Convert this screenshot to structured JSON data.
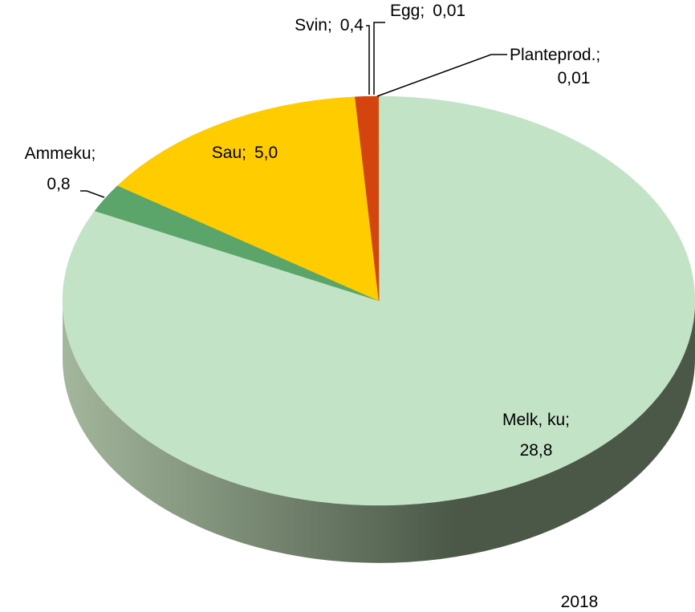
{
  "chart_data": {
    "type": "pie",
    "subtitle": "2018",
    "separator": ";",
    "categories": [
      "Melk, ku",
      "Ammeku",
      "Sau",
      "Svin",
      "Egg",
      "Planteprod."
    ],
    "values": [
      28.8,
      0.8,
      5.0,
      0.4,
      0.01,
      0.01
    ],
    "value_labels": [
      "28,8",
      "0,8",
      "5,0",
      "0,4",
      "0,01",
      "0,01"
    ],
    "colors": [
      "#c3e3c7",
      "#5ba56a",
      "#ffcc00",
      "#d4440e",
      "#c9561c",
      "#b5651f"
    ],
    "side_colors": [
      "#a3b79c",
      "#4b5848"
    ]
  }
}
